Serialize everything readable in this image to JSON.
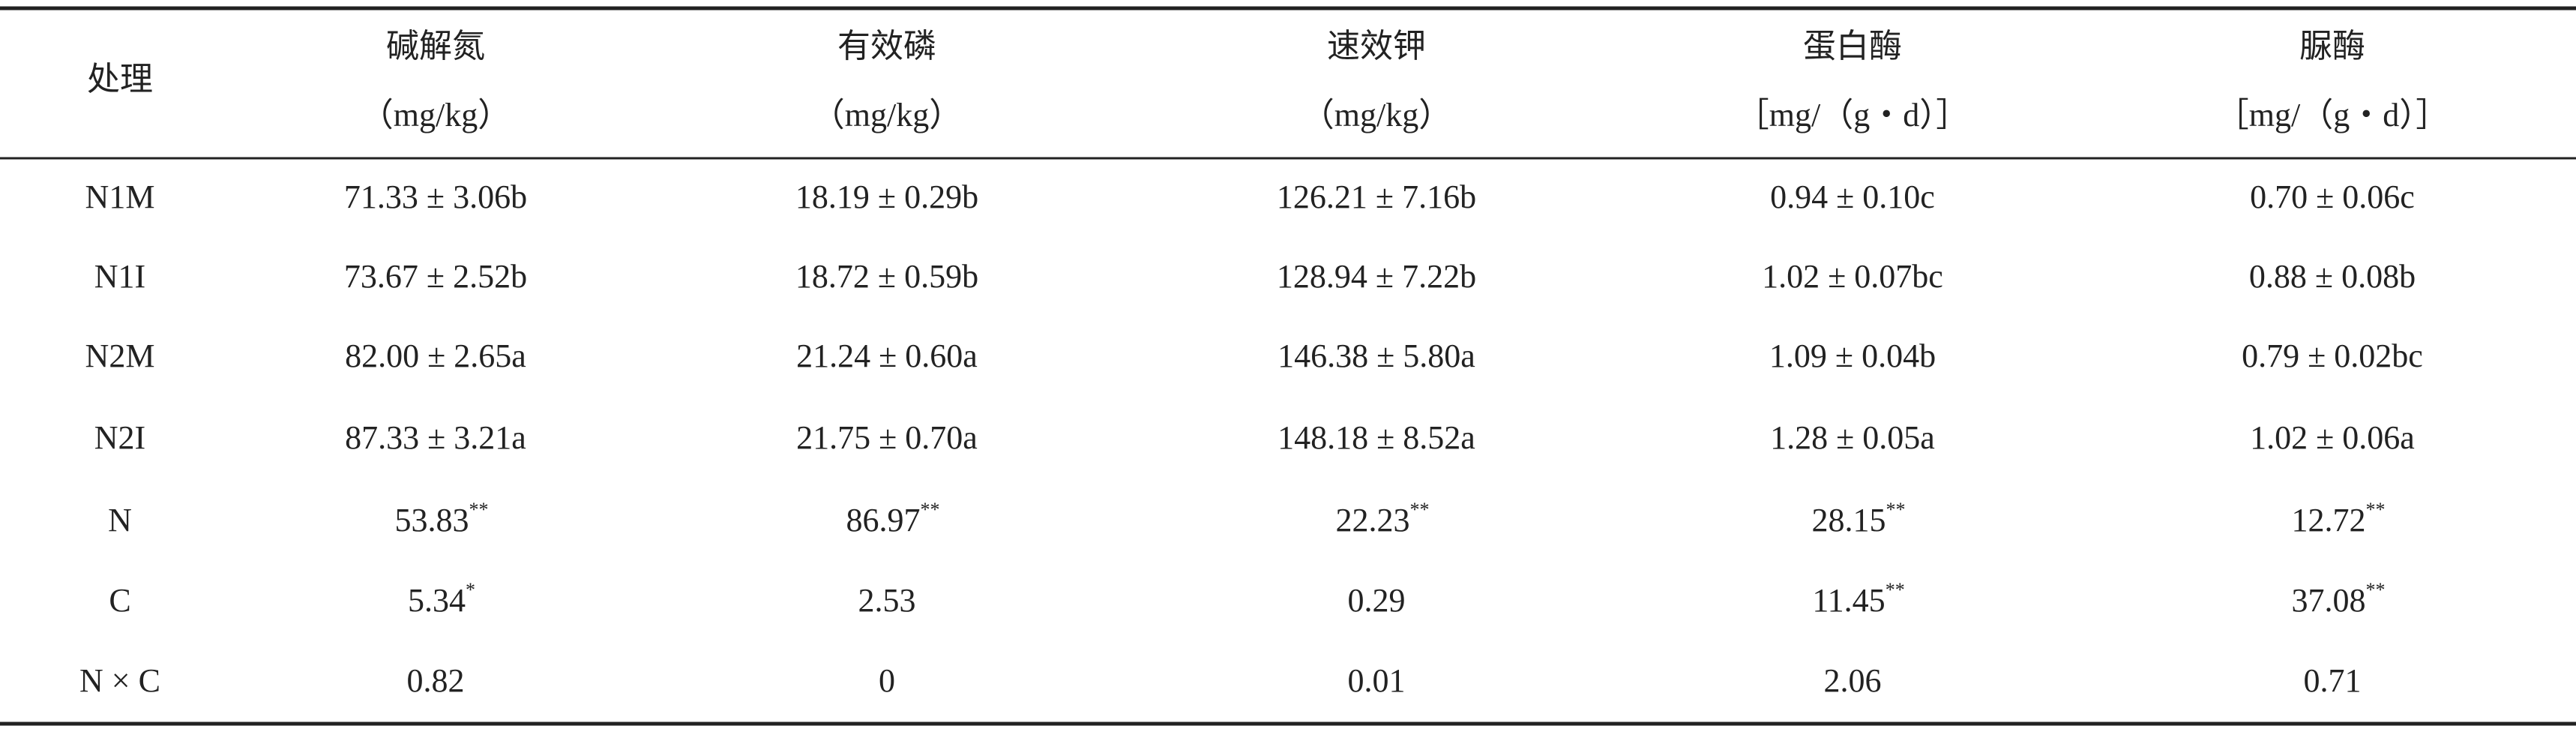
{
  "table": {
    "columns": [
      {
        "name": "处理"
      },
      {
        "name": "碱解氮",
        "unit": "（mg/kg）"
      },
      {
        "name": "有效磷",
        "unit": "（mg/kg）"
      },
      {
        "name": "速效钾",
        "unit": "（mg/kg）"
      },
      {
        "name": "蛋白酶",
        "unit": "［mg/（g・d）］"
      },
      {
        "name": "脲酶",
        "unit": "［mg/（g・d）］"
      }
    ],
    "rows": [
      [
        "N1M",
        "71.33 ± 3.06b",
        "18.19 ± 0.29b",
        "126.21 ± 7.16b",
        "0.94 ± 0.10c",
        "0.70 ± 0.06c"
      ],
      [
        "N1I",
        "73.67 ± 2.52b",
        "18.72 ± 0.59b",
        "128.94 ± 7.22b",
        "1.02 ± 0.07bc",
        "0.88 ± 0.08b"
      ],
      [
        "N2M",
        "82.00 ± 2.65a",
        "21.24 ± 0.60a",
        "146.38 ± 5.80a",
        "1.09 ± 0.04b",
        "0.79 ± 0.02bc"
      ],
      [
        "N2I",
        "87.33 ± 3.21a",
        "21.75 ± 0.70a",
        "148.18 ± 8.52a",
        "1.28 ± 0.05a",
        "1.02 ± 0.06a"
      ],
      [
        "N",
        {
          "text": "53.83",
          "sup": "**"
        },
        {
          "text": "86.97",
          "sup": "**"
        },
        {
          "text": "22.23",
          "sup": "**"
        },
        {
          "text": "28.15",
          "sup": "**"
        },
        {
          "text": "12.72",
          "sup": "**"
        }
      ],
      [
        "C",
        {
          "text": "5.34",
          "sup": "*"
        },
        "2.53",
        "0.29",
        {
          "text": "11.45",
          "sup": "**"
        },
        {
          "text": "37.08",
          "sup": "**"
        }
      ],
      [
        "N × C",
        "0.82",
        "0",
        "0.01",
        "2.06",
        "0.71"
      ]
    ]
  }
}
